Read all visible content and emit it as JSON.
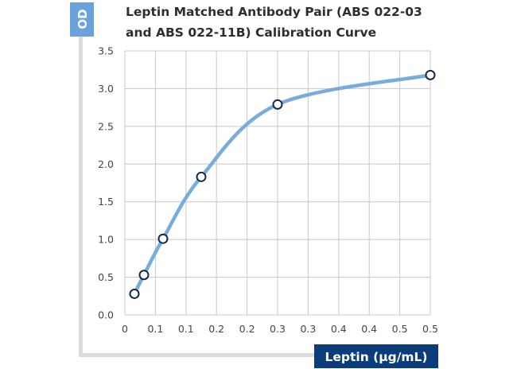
{
  "chart_data": {
    "type": "line",
    "title_lines": [
      "Leptin Matched Antibody Pair (ABS 022-03",
      "and ABS 022-11B) Calibration Curve"
    ],
    "xlabel": "Leptin (µg/mL)",
    "ylabel": "OD",
    "xlim": [
      0,
      0.5
    ],
    "ylim": [
      0,
      3.5
    ],
    "x_tick_values": [
      0,
      0.05,
      0.1,
      0.15,
      0.2,
      0.25,
      0.3,
      0.35,
      0.4,
      0.45,
      0.5
    ],
    "x_tick_labels": [
      "0",
      "0.1",
      "0.1",
      "0.2",
      "0.2",
      "0.3",
      "0.3",
      "0.4",
      "0.4",
      "0.5",
      "0.5"
    ],
    "y_tick_values": [
      0,
      0.5,
      1,
      1.5,
      2,
      2.5,
      3,
      3.5
    ],
    "y_tick_labels": [
      "0.0",
      "0.5",
      "1.0",
      "1.5",
      "2.0",
      "2.5",
      "3.0",
      "3.5"
    ],
    "grid": true,
    "series": [
      {
        "x": [
          0.0156,
          0.03125,
          0.0625,
          0.125,
          0.25,
          0.5
        ],
        "y": [
          0.28,
          0.53,
          1.01,
          1.83,
          2.79,
          3.18
        ]
      }
    ],
    "colors": {
      "curve": "#78acdc",
      "marker_edge": "#13294b",
      "grid": "#c8c8c8",
      "frame": "#dcdcdc",
      "ylabel_bg": "#6aa2dc",
      "xlabel_bg": "#0b3d7c"
    }
  }
}
